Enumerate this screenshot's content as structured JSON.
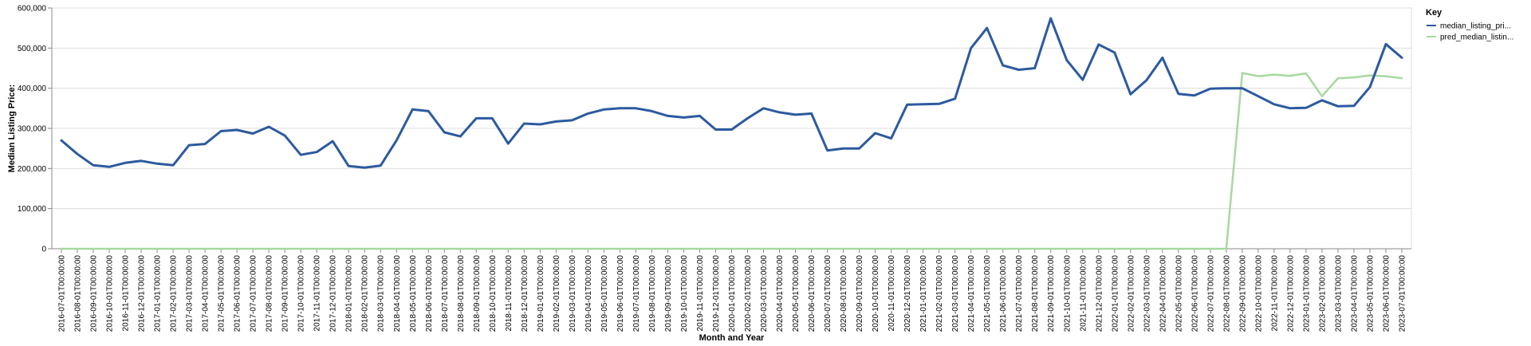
{
  "chart_data": {
    "type": "line",
    "xlabel": "Month and Year",
    "ylabel": "Median Listing Price:",
    "ylim": [
      0,
      600000
    ],
    "y_ticks": [
      "0",
      "100,000",
      "200,000",
      "300,000",
      "400,000",
      "500,000",
      "600,000"
    ],
    "y_tick_values": [
      0,
      100000,
      200000,
      300000,
      400000,
      500000,
      600000
    ],
    "grid": true,
    "legend": {
      "title": "Key",
      "position": "right"
    },
    "x": [
      "2016-07-01T00:00:00",
      "2016-08-01T00:00:00",
      "2016-09-01T00:00:00",
      "2016-10-01T00:00:00",
      "2016-11-01T00:00:00",
      "2016-12-01T00:00:00",
      "2017-01-01T00:00:00",
      "2017-02-01T00:00:00",
      "2017-03-01T00:00:00",
      "2017-04-01T00:00:00",
      "2017-05-01T00:00:00",
      "2017-06-01T00:00:00",
      "2017-07-01T00:00:00",
      "2017-08-01T00:00:00",
      "2017-09-01T00:00:00",
      "2017-10-01T00:00:00",
      "2017-11-01T00:00:00",
      "2017-12-01T00:00:00",
      "2018-01-01T00:00:00",
      "2018-02-01T00:00:00",
      "2018-03-01T00:00:00",
      "2018-04-01T00:00:00",
      "2018-05-01T00:00:00",
      "2018-06-01T00:00:00",
      "2018-07-01T00:00:00",
      "2018-08-01T00:00:00",
      "2018-09-01T00:00:00",
      "2018-10-01T00:00:00",
      "2018-11-01T00:00:00",
      "2018-12-01T00:00:00",
      "2019-01-01T00:00:00",
      "2019-02-01T00:00:00",
      "2019-03-01T00:00:00",
      "2019-04-01T00:00:00",
      "2019-05-01T00:00:00",
      "2019-06-01T00:00:00",
      "2019-07-01T00:00:00",
      "2019-08-01T00:00:00",
      "2019-09-01T00:00:00",
      "2019-10-01T00:00:00",
      "2019-11-01T00:00:00",
      "2019-12-01T00:00:00",
      "2020-01-01T00:00:00",
      "2020-02-01T00:00:00",
      "2020-03-01T00:00:00",
      "2020-04-01T00:00:00",
      "2020-05-01T00:00:00",
      "2020-06-01T00:00:00",
      "2020-07-01T00:00:00",
      "2020-08-01T00:00:00",
      "2020-09-01T00:00:00",
      "2020-10-01T00:00:00",
      "2020-11-01T00:00:00",
      "2020-12-01T00:00:00",
      "2021-01-01T00:00:00",
      "2021-02-01T00:00:00",
      "2021-03-01T00:00:00",
      "2021-04-01T00:00:00",
      "2021-05-01T00:00:00",
      "2021-06-01T00:00:00",
      "2021-07-01T00:00:00",
      "2021-08-01T00:00:00",
      "2021-09-01T00:00:00",
      "2021-10-01T00:00:00",
      "2021-11-01T00:00:00",
      "2021-12-01T00:00:00",
      "2022-01-01T00:00:00",
      "2022-02-01T00:00:00",
      "2022-03-01T00:00:00",
      "2022-04-01T00:00:00",
      "2022-05-01T00:00:00",
      "2022-06-01T00:00:00",
      "2022-07-01T00:00:00",
      "2022-08-01T00:00:00",
      "2022-09-01T00:00:00",
      "2022-10-01T00:00:00",
      "2022-11-01T00:00:00",
      "2022-12-01T00:00:00",
      "2023-01-01T00:00:00",
      "2023-02-01T00:00:00",
      "2023-03-01T00:00:00",
      "2023-04-01T00:00:00",
      "2023-05-01T00:00:00",
      "2023-06-01T00:00:00",
      "2023-07-01T00:00:00"
    ],
    "series": [
      {
        "name": "median_listing_pri...",
        "color": "#2c5a9e",
        "values": [
          270000,
          236000,
          208000,
          204000,
          214000,
          219000,
          212000,
          208000,
          258000,
          261000,
          293000,
          296000,
          287000,
          304000,
          282000,
          234000,
          241000,
          268000,
          206000,
          202000,
          207000,
          270000,
          347000,
          343000,
          290000,
          280000,
          325000,
          325000,
          262000,
          312000,
          310000,
          317000,
          320000,
          337000,
          347000,
          350000,
          350000,
          343000,
          331000,
          327000,
          331000,
          297000,
          297000,
          325000,
          350000,
          340000,
          334000,
          337000,
          245000,
          250000,
          250000,
          288000,
          275000,
          359000,
          360000,
          361000,
          374000,
          500000,
          550000,
          457000,
          446000,
          450000,
          574000,
          470000,
          421000,
          509000,
          489000,
          385000,
          420000,
          476000,
          386000,
          382000,
          399000,
          400000,
          400000,
          380000,
          360000,
          350000,
          351000,
          370000,
          355000,
          356000,
          403000,
          510000,
          476000
        ]
      },
      {
        "name": "pred_median_listin...",
        "color": "#a8d8a0",
        "values": [
          0,
          0,
          0,
          0,
          0,
          0,
          0,
          0,
          0,
          0,
          0,
          0,
          0,
          0,
          0,
          0,
          0,
          0,
          0,
          0,
          0,
          0,
          0,
          0,
          0,
          0,
          0,
          0,
          0,
          0,
          0,
          0,
          0,
          0,
          0,
          0,
          0,
          0,
          0,
          0,
          0,
          0,
          0,
          0,
          0,
          0,
          0,
          0,
          0,
          0,
          0,
          0,
          0,
          0,
          0,
          0,
          0,
          0,
          0,
          0,
          0,
          0,
          0,
          0,
          0,
          0,
          0,
          0,
          0,
          0,
          0,
          0,
          0,
          0,
          438000,
          430000,
          434000,
          431000,
          437000,
          380000,
          425000,
          427000,
          432000,
          430000,
          425000
        ]
      }
    ]
  }
}
